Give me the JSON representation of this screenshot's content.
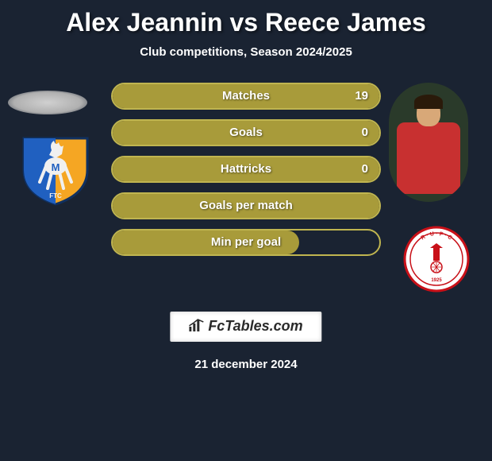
{
  "title": "Alex Jeannin vs Reece James",
  "subtitle": "Club competitions, Season 2024/2025",
  "date": "21 december 2024",
  "watermark": "FcTables.com",
  "colors": {
    "background": "#1a2332",
    "bar_fill": "#a89b3a",
    "bar_border": "#c0b550",
    "text": "#ffffff"
  },
  "left_badge": {
    "name": "mansfield-town",
    "primary": "#f5a623",
    "secondary": "#2060c0",
    "stag": "#f0f0f0"
  },
  "right_badge": {
    "name": "rotherham-united",
    "primary": "#c81018",
    "secondary": "#ffffff"
  },
  "stats": [
    {
      "label": "Matches",
      "right_value": "19",
      "fill_pct": 100
    },
    {
      "label": "Goals",
      "right_value": "0",
      "fill_pct": 100
    },
    {
      "label": "Hattricks",
      "right_value": "0",
      "fill_pct": 100
    },
    {
      "label": "Goals per match",
      "right_value": "",
      "fill_pct": 100
    },
    {
      "label": "Min per goal",
      "right_value": "",
      "fill_pct": 70
    }
  ]
}
